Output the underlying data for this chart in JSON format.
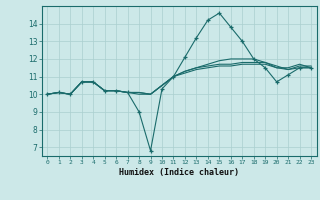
{
  "xlabel": "Humidex (Indice chaleur)",
  "ylabel": "",
  "bg_color": "#cce8e8",
  "grid_color": "#aacfcf",
  "line_color": "#1a6b6b",
  "xlim": [
    -0.5,
    23.5
  ],
  "ylim": [
    6.5,
    15.0
  ],
  "yticks": [
    7,
    8,
    9,
    10,
    11,
    12,
    13,
    14
  ],
  "xticks": [
    0,
    1,
    2,
    3,
    4,
    5,
    6,
    7,
    8,
    9,
    10,
    11,
    12,
    13,
    14,
    15,
    16,
    17,
    18,
    19,
    20,
    21,
    22,
    23
  ],
  "lines": [
    {
      "x": [
        0,
        1,
        2,
        3,
        4,
        5,
        6,
        7,
        8,
        9,
        10,
        11,
        12,
        13,
        14,
        15,
        16,
        17,
        18,
        19,
        20,
        21,
        22,
        23
      ],
      "y": [
        10.0,
        10.1,
        10.0,
        10.7,
        10.7,
        10.2,
        10.2,
        10.1,
        9.0,
        6.8,
        10.3,
        11.0,
        12.1,
        13.2,
        14.2,
        14.6,
        13.8,
        13.0,
        12.0,
        11.5,
        10.7,
        11.1,
        11.5,
        11.5
      ],
      "marker": "+"
    },
    {
      "x": [
        0,
        1,
        2,
        3,
        4,
        5,
        6,
        7,
        8,
        9,
        10,
        11,
        12,
        13,
        14,
        15,
        16,
        17,
        18,
        19,
        20,
        21,
        22,
        23
      ],
      "y": [
        10.0,
        10.1,
        10.0,
        10.7,
        10.7,
        10.2,
        10.2,
        10.1,
        10.0,
        10.0,
        10.5,
        11.0,
        11.3,
        11.5,
        11.7,
        11.9,
        12.0,
        12.0,
        12.0,
        11.8,
        11.5,
        11.5,
        11.7,
        11.5
      ],
      "marker": null
    },
    {
      "x": [
        0,
        1,
        2,
        3,
        4,
        5,
        6,
        7,
        8,
        9,
        10,
        11,
        12,
        13,
        14,
        15,
        16,
        17,
        18,
        19,
        20,
        21,
        22,
        23
      ],
      "y": [
        10.0,
        10.1,
        10.0,
        10.7,
        10.7,
        10.2,
        10.2,
        10.1,
        10.1,
        10.0,
        10.5,
        11.0,
        11.3,
        11.5,
        11.6,
        11.7,
        11.7,
        11.8,
        11.8,
        11.8,
        11.6,
        11.4,
        11.5,
        11.5
      ],
      "marker": null
    },
    {
      "x": [
        0,
        1,
        2,
        3,
        4,
        5,
        6,
        7,
        8,
        9,
        10,
        11,
        12,
        13,
        14,
        15,
        16,
        17,
        18,
        19,
        20,
        21,
        22,
        23
      ],
      "y": [
        10.0,
        10.1,
        10.0,
        10.7,
        10.7,
        10.2,
        10.2,
        10.1,
        10.1,
        10.0,
        10.5,
        11.0,
        11.2,
        11.4,
        11.5,
        11.6,
        11.6,
        11.7,
        11.7,
        11.7,
        11.5,
        11.4,
        11.6,
        11.6
      ],
      "marker": null
    }
  ]
}
